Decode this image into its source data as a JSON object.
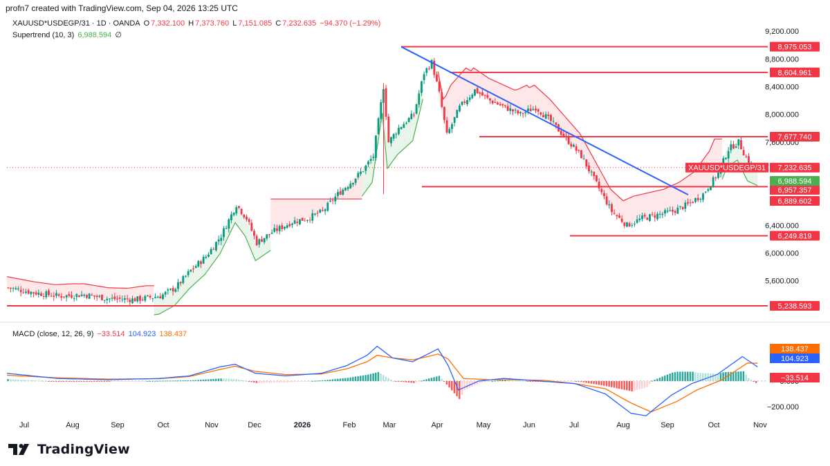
{
  "header": {
    "credit": "profn7 created with TradingView.com, Sep 04, 2026 13:25 UTC"
  },
  "legend": {
    "symbol": "XAUUSD*USDEGP/31 · 1D · OANDA",
    "open_label": "O",
    "open": "7,332.100",
    "high_label": "H",
    "high": "7,373.760",
    "low_label": "L",
    "low": "7,151.085",
    "close_label": "C",
    "close": "7,232.635",
    "change": "−94.370 (−1.29%)",
    "supertrend_label": "Supertrend (10, 3)",
    "supertrend_value": "6,988.594",
    "eye_icon": "∅"
  },
  "macd_legend": {
    "label": "MACD (close, 12, 26, 9)",
    "hist": "−33.514",
    "macd": "104.923",
    "signal": "138.437"
  },
  "colors": {
    "up": "#089981",
    "down": "#f23645",
    "level": "#f23645",
    "trendline": "#2962ff",
    "supertrend_up": "#4caf50",
    "supertrend_down": "#f23645",
    "macd": "#2962ff",
    "signal": "#ff6d00"
  },
  "chart_data": {
    "type": "candlestick",
    "symbol": "XAUUSD*USDEGP/31",
    "y_range": [
      5050,
      9350
    ],
    "price_axis_ticks": [
      "9,200.000",
      "8,800.000",
      "8,400.000",
      "8,000.000",
      "7,600.000",
      "6,400.000",
      "6,000.000",
      "5,600.000"
    ],
    "x_axis_labels": [
      "Jul",
      "Aug",
      "Sep",
      "Oct",
      "Nov",
      "Dec",
      "2026",
      "Feb",
      "Mar",
      "Apr",
      "May",
      "Jun",
      "Jul",
      "Aug",
      "Sep",
      "Oct",
      "Nov"
    ],
    "horizontal_levels": [
      {
        "price": 8975.053,
        "label": "8,975.053"
      },
      {
        "price": 8604.961,
        "label": "8,604.961"
      },
      {
        "price": 7677.74,
        "label": "7,677.740"
      },
      {
        "price": 6957.357,
        "label": "6,957.357"
      },
      {
        "price": 6889.602,
        "label": "6,889.602"
      },
      {
        "price": 6249.819,
        "label": "6,249.819"
      },
      {
        "price": 5238.593,
        "label": "5,238.593"
      }
    ],
    "current_price": {
      "symbol": "XAUUSD*USDEGP/31",
      "label": "7,232.635",
      "price": 7232.635
    },
    "supertrend_label": "6,988.594",
    "price_path": [
      [
        0,
        5500
      ],
      [
        10,
        5430
      ],
      [
        20,
        5380
      ],
      [
        30,
        5400
      ],
      [
        40,
        5340
      ],
      [
        50,
        5330
      ],
      [
        60,
        5380
      ],
      [
        66,
        5500
      ],
      [
        72,
        5750
      ],
      [
        78,
        5950
      ],
      [
        84,
        6250
      ],
      [
        90,
        6700
      ],
      [
        94,
        6500
      ],
      [
        98,
        6150
      ],
      [
        104,
        6300
      ],
      [
        112,
        6450
      ],
      [
        118,
        6500
      ],
      [
        124,
        6600
      ],
      [
        130,
        6850
      ],
      [
        136,
        7050
      ],
      [
        140,
        7200
      ],
      [
        144,
        7400
      ],
      [
        148,
        8400
      ],
      [
        150,
        7600
      ],
      [
        154,
        7800
      ],
      [
        160,
        8000
      ],
      [
        164,
        8600
      ],
      [
        167,
        8750
      ],
      [
        170,
        8300
      ],
      [
        173,
        7700
      ],
      [
        178,
        8100
      ],
      [
        184,
        8350
      ],
      [
        190,
        8200
      ],
      [
        196,
        8100
      ],
      [
        202,
        8000
      ],
      [
        208,
        8100
      ],
      [
        214,
        7900
      ],
      [
        220,
        7650
      ],
      [
        226,
        7400
      ],
      [
        232,
        7000
      ],
      [
        238,
        6600
      ],
      [
        244,
        6400
      ],
      [
        250,
        6500
      ],
      [
        256,
        6550
      ],
      [
        262,
        6600
      ],
      [
        268,
        6700
      ],
      [
        274,
        6850
      ],
      [
        280,
        7150
      ],
      [
        284,
        7500
      ],
      [
        288,
        7600
      ],
      [
        292,
        7300
      ],
      [
        296,
        7232
      ]
    ],
    "macd": {
      "label": "MACD (close, 12, 26, 9)",
      "y_ticks": [
        "0.000",
        "−200.000"
      ],
      "y_range": [
        -290,
        300
      ],
      "macd_path": [
        [
          0,
          60
        ],
        [
          20,
          20
        ],
        [
          40,
          10
        ],
        [
          60,
          20
        ],
        [
          72,
          40
        ],
        [
          84,
          110
        ],
        [
          90,
          130
        ],
        [
          98,
          60
        ],
        [
          110,
          40
        ],
        [
          124,
          60
        ],
        [
          134,
          120
        ],
        [
          142,
          200
        ],
        [
          146,
          270
        ],
        [
          152,
          180
        ],
        [
          160,
          150
        ],
        [
          166,
          210
        ],
        [
          170,
          250
        ],
        [
          174,
          120
        ],
        [
          178,
          -70
        ],
        [
          186,
          0
        ],
        [
          196,
          20
        ],
        [
          210,
          0
        ],
        [
          224,
          -20
        ],
        [
          236,
          -100
        ],
        [
          246,
          -250
        ],
        [
          252,
          -270
        ],
        [
          262,
          -110
        ],
        [
          270,
          -20
        ],
        [
          280,
          50
        ],
        [
          290,
          190
        ],
        [
          296,
          110
        ]
      ],
      "signal_path": [
        [
          0,
          45
        ],
        [
          20,
          25
        ],
        [
          40,
          15
        ],
        [
          60,
          18
        ],
        [
          72,
          35
        ],
        [
          84,
          90
        ],
        [
          90,
          115
        ],
        [
          98,
          75
        ],
        [
          110,
          50
        ],
        [
          124,
          55
        ],
        [
          134,
          95
        ],
        [
          142,
          150
        ],
        [
          146,
          200
        ],
        [
          152,
          180
        ],
        [
          160,
          165
        ],
        [
          166,
          190
        ],
        [
          170,
          210
        ],
        [
          174,
          170
        ],
        [
          180,
          20
        ],
        [
          190,
          10
        ],
        [
          200,
          10
        ],
        [
          212,
          5
        ],
        [
          224,
          -20
        ],
        [
          236,
          -60
        ],
        [
          246,
          -170
        ],
        [
          254,
          -240
        ],
        [
          264,
          -160
        ],
        [
          272,
          -70
        ],
        [
          282,
          10
        ],
        [
          292,
          140
        ],
        [
          296,
          138
        ]
      ]
    }
  }
}
